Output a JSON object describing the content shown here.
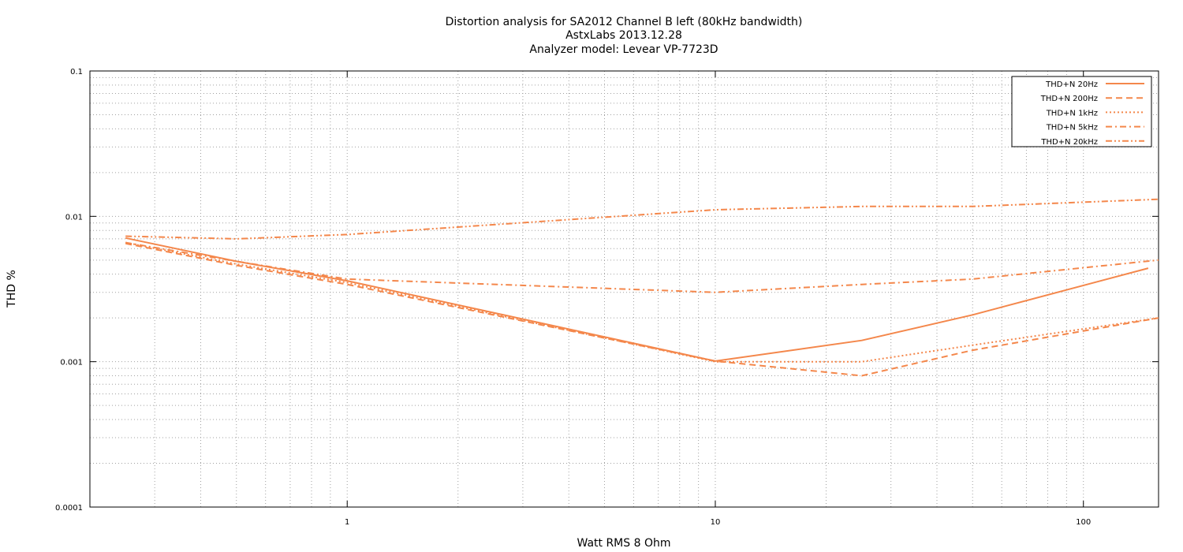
{
  "chart_data": {
    "type": "line",
    "title": [
      "Distortion analysis for SA2012 Channel B left (80kHz bandwidth)",
      "AstxLabs 2013.12.28",
      "Analyzer model: Levear VP-7723D"
    ],
    "xlabel": "Watt RMS 8 Ohm",
    "ylabel": "THD %",
    "xscale": "log",
    "yscale": "log",
    "xlim": [
      0.2,
      160
    ],
    "ylim": [
      0.0001,
      0.1
    ],
    "x_tick_labels": [
      "1",
      "10",
      "100"
    ],
    "x_tick_values": [
      1,
      10,
      100
    ],
    "y_tick_labels": [
      "0.0001",
      "0.001",
      "0.01",
      "0.1"
    ],
    "y_tick_values": [
      0.0001,
      0.001,
      0.01,
      0.1
    ],
    "grid": true,
    "legend_position": "top-right",
    "line_color": "#f4874b",
    "series": [
      {
        "name": "THD+N 20Hz",
        "dash": "solid",
        "x": [
          0.25,
          0.5,
          1,
          10,
          25,
          50,
          150
        ],
        "y": [
          0.0071,
          0.0049,
          0.0036,
          0.00101,
          0.0014,
          0.0021,
          0.0044
        ]
      },
      {
        "name": "THD+N 200Hz",
        "dash": "dashed",
        "x": [
          0.25,
          0.5,
          1,
          10,
          25,
          50,
          160
        ],
        "y": [
          0.0065,
          0.0046,
          0.0034,
          0.00101,
          0.0008,
          0.0012,
          0.002
        ]
      },
      {
        "name": "THD+N 1kHz",
        "dash": "dotted",
        "x": [
          0.25,
          0.5,
          1,
          10,
          25,
          50,
          160
        ],
        "y": [
          0.0066,
          0.0047,
          0.0035,
          0.001,
          0.001,
          0.0013,
          0.002
        ]
      },
      {
        "name": "THD+N 5kHz",
        "dash": "dashdot",
        "x": [
          0.25,
          0.5,
          1,
          10,
          25,
          50,
          160
        ],
        "y": [
          0.0066,
          0.0049,
          0.0037,
          0.003,
          0.0034,
          0.0037,
          0.005
        ]
      },
      {
        "name": "THD+N 20kHz",
        "dash": "dashdotdot",
        "x": [
          0.25,
          0.5,
          1,
          10,
          25,
          50,
          160
        ],
        "y": [
          0.0073,
          0.007,
          0.0075,
          0.0111,
          0.0117,
          0.0117,
          0.0131
        ]
      }
    ]
  }
}
